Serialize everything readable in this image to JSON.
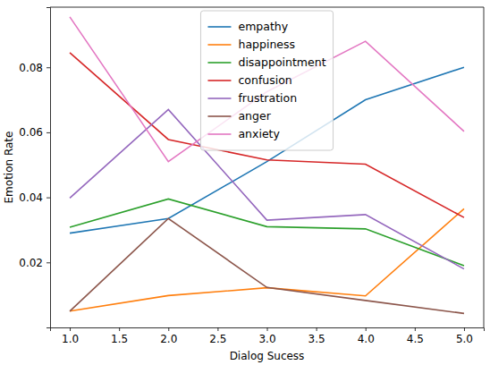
{
  "chart_data": {
    "type": "line",
    "x_label": "Dialog Sucess",
    "y_label": "Emotion Rate",
    "x": [
      1,
      2,
      3,
      4,
      5
    ],
    "series": [
      {
        "name": "empathy",
        "color": "#1f77b4",
        "values": [
          0.029,
          0.0335,
          0.051,
          0.07,
          0.08
        ]
      },
      {
        "name": "happiness",
        "color": "#ff7f0e",
        "values": [
          0.005,
          0.0098,
          0.0122,
          0.0097,
          0.0365
        ]
      },
      {
        "name": "disappointment",
        "color": "#2ca02c",
        "values": [
          0.0308,
          0.0395,
          0.031,
          0.0303,
          0.019
        ]
      },
      {
        "name": "confusion",
        "color": "#d62728",
        "values": [
          0.0845,
          0.0578,
          0.0515,
          0.0502,
          0.0338
        ]
      },
      {
        "name": "frustration",
        "color": "#9467bd",
        "values": [
          0.0398,
          0.067,
          0.033,
          0.0347,
          0.018
        ]
      },
      {
        "name": "anger",
        "color": "#8c564b",
        "values": [
          0.005,
          0.0335,
          0.0123,
          0.0083,
          0.0043
        ]
      },
      {
        "name": "anxiety",
        "color": "#e377c2",
        "values": [
          0.0955,
          0.051,
          0.0725,
          0.088,
          0.0603
        ]
      }
    ],
    "xlim": [
      0.8,
      5.2
    ],
    "xticks": [
      {
        "value": 1,
        "label": "1.0"
      },
      {
        "value": 1.5,
        "label": "1.5"
      },
      {
        "value": 2,
        "label": "2.0"
      },
      {
        "value": 2.5,
        "label": "2.5"
      },
      {
        "value": 3,
        "label": "3.0"
      },
      {
        "value": 3.5,
        "label": "3.5"
      },
      {
        "value": 4,
        "label": "4.0"
      },
      {
        "value": 4.5,
        "label": "4.5"
      },
      {
        "value": 5,
        "label": "5.0"
      }
    ],
    "ylim": [
      0.0,
      0.0985
    ],
    "yticks": [
      0.02,
      0.04,
      0.06,
      0.08
    ],
    "grid": false,
    "legend": "upper center"
  }
}
